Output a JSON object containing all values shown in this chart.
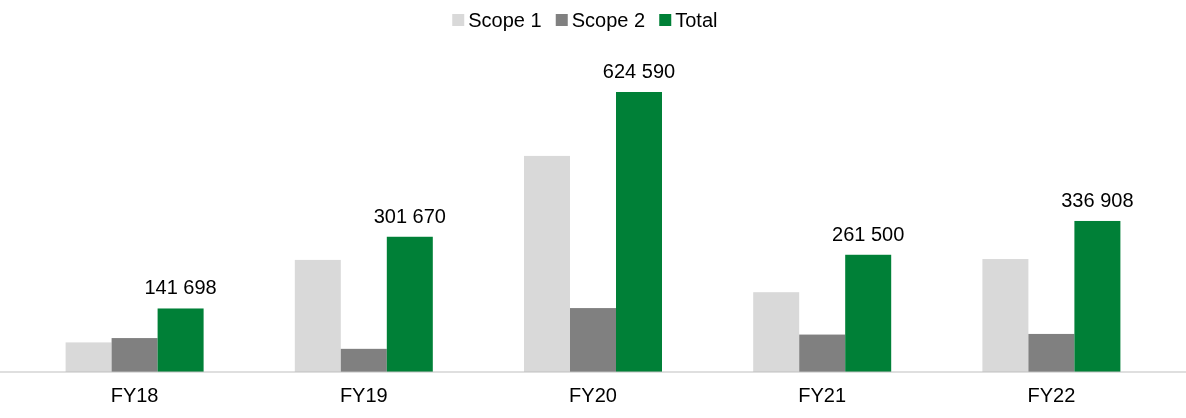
{
  "chart_data": {
    "type": "bar",
    "categories": [
      "FY18",
      "FY19",
      "FY20",
      "FY21",
      "FY22"
    ],
    "legend": "top",
    "series": [
      {
        "name": "Scope 1",
        "color": "#d9d9d9",
        "values": [
          66000,
          250000,
          482000,
          178000,
          252000
        ]
      },
      {
        "name": "Scope 2",
        "color": "#808080",
        "values": [
          75698,
          51670,
          142590,
          83500,
          84908
        ]
      },
      {
        "name": "Total",
        "color": "#008037",
        "values": [
          141698,
          301670,
          624590,
          261500,
          336908
        ],
        "value_labels": [
          "141 698",
          "301 670",
          "624 590",
          "261 500",
          "336 908"
        ]
      }
    ]
  }
}
